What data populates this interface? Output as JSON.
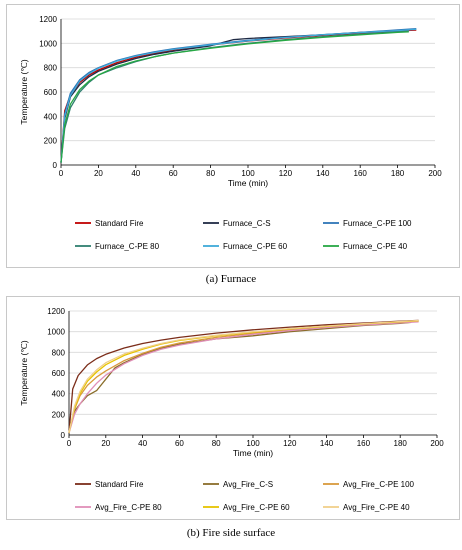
{
  "captions": [
    "(a)  Furnace",
    "(b) Fire side surface"
  ],
  "chart_data": [
    {
      "type": "line",
      "xlabel": "Time (min)",
      "ylabel": "Temperature (℃)",
      "xlim": [
        0,
        200
      ],
      "ylim": [
        0,
        1200
      ],
      "xticks": [
        0,
        20,
        40,
        60,
        80,
        100,
        120,
        140,
        160,
        180,
        200
      ],
      "yticks": [
        0,
        200,
        400,
        600,
        800,
        1000,
        1200
      ],
      "grid": "horizontal",
      "legend_position": "bottom",
      "series": [
        {
          "name": "Standard Fire",
          "color": "#c00000",
          "x": [
            0,
            2,
            5,
            10,
            15,
            20,
            30,
            40,
            50,
            60,
            80,
            100,
            120,
            140,
            160,
            180,
            190
          ],
          "y": [
            20,
            445,
            576,
            678,
            739,
            781,
            842,
            885,
            918,
            945,
            986,
            1018,
            1044,
            1066,
            1084,
            1101,
            1109
          ]
        },
        {
          "name": "Furnace_C-S",
          "color": "#1f2a44",
          "x": [
            0,
            2,
            5,
            10,
            15,
            20,
            30,
            40,
            50,
            60,
            80,
            92,
            100,
            120,
            140,
            160,
            180,
            186
          ],
          "y": [
            20,
            380,
            560,
            660,
            725,
            770,
            830,
            875,
            910,
            935,
            980,
            1030,
            1040,
            1055,
            1070,
            1090,
            1105,
            1110
          ]
        },
        {
          "name": "Furnace_C-PE 100",
          "color": "#2e75b6",
          "x": [
            0,
            2,
            5,
            10,
            15,
            20,
            30,
            40,
            50,
            60,
            80,
            100,
            120,
            140,
            160,
            180,
            190
          ],
          "y": [
            20,
            420,
            590,
            700,
            760,
            800,
            860,
            900,
            930,
            955,
            992,
            1025,
            1050,
            1072,
            1090,
            1110,
            1120
          ]
        },
        {
          "name": "Furnace_C-PE 80",
          "color": "#2f7f6f",
          "x": [
            0,
            2,
            5,
            10,
            15,
            20,
            30,
            40,
            50,
            60,
            80,
            100,
            120,
            140,
            160,
            180,
            186
          ],
          "y": [
            20,
            300,
            470,
            600,
            680,
            740,
            800,
            850,
            890,
            920,
            965,
            1000,
            1030,
            1055,
            1075,
            1095,
            1100
          ]
        },
        {
          "name": "Furnace_C-PE 60",
          "color": "#3fa9d8",
          "x": [
            0,
            2,
            5,
            10,
            15,
            20,
            30,
            40,
            50,
            60,
            80,
            100,
            120,
            140,
            160,
            180,
            190
          ],
          "y": [
            20,
            400,
            570,
            690,
            750,
            795,
            855,
            895,
            925,
            950,
            988,
            1020,
            1048,
            1070,
            1088,
            1105,
            1115
          ]
        },
        {
          "name": "Furnace_C-PE 40",
          "color": "#27a844",
          "x": [
            0,
            2,
            5,
            10,
            15,
            20,
            30,
            40,
            50,
            60,
            80,
            100,
            120,
            140,
            160,
            180,
            186
          ],
          "y": [
            20,
            330,
            500,
            620,
            690,
            740,
            810,
            855,
            890,
            920,
            960,
            995,
            1025,
            1050,
            1070,
            1090,
            1095
          ]
        }
      ]
    },
    {
      "type": "line",
      "xlabel": "Time (min)",
      "ylabel": "Temperature (℃)",
      "xlim": [
        0,
        200
      ],
      "ylim": [
        0,
        1200
      ],
      "xticks": [
        0,
        20,
        40,
        60,
        80,
        100,
        120,
        140,
        160,
        180,
        200
      ],
      "yticks": [
        0,
        200,
        400,
        600,
        800,
        1000,
        1200
      ],
      "grid": "horizontal",
      "legend_position": "bottom",
      "series": [
        {
          "name": "Standard Fire",
          "color": "#7b2d1a",
          "x": [
            0,
            2,
            5,
            10,
            15,
            20,
            30,
            40,
            50,
            60,
            80,
            100,
            120,
            140,
            160,
            180,
            190
          ],
          "y": [
            20,
            445,
            576,
            678,
            739,
            781,
            842,
            885,
            918,
            945,
            986,
            1018,
            1044,
            1066,
            1084,
            1101,
            1109
          ]
        },
        {
          "name": "Avg_Fire_C-S",
          "color": "#8a6d2a",
          "x": [
            0,
            3,
            6,
            10,
            15,
            20,
            25,
            30,
            40,
            50,
            60,
            80,
            100,
            120,
            140,
            160,
            180,
            186
          ],
          "y": [
            20,
            230,
            300,
            380,
            430,
            540,
            650,
            700,
            780,
            840,
            880,
            930,
            960,
            1000,
            1030,
            1060,
            1080,
            1090
          ]
        },
        {
          "name": "Avg_Fire_C-PE 100",
          "color": "#d99a3c",
          "x": [
            0,
            3,
            6,
            10,
            15,
            20,
            30,
            40,
            50,
            60,
            80,
            100,
            120,
            140,
            160,
            180,
            190
          ],
          "y": [
            20,
            250,
            380,
            480,
            560,
            620,
            720,
            790,
            850,
            890,
            945,
            985,
            1020,
            1045,
            1070,
            1090,
            1100
          ]
        },
        {
          "name": "Avg_Fire_C-PE 80",
          "color": "#e08fb8",
          "x": [
            0,
            3,
            6,
            10,
            15,
            20,
            30,
            40,
            50,
            60,
            80,
            100,
            120,
            140,
            160,
            180,
            190
          ],
          "y": [
            20,
            200,
            300,
            400,
            500,
            580,
            690,
            770,
            830,
            870,
            930,
            975,
            1010,
            1040,
            1065,
            1085,
            1095
          ]
        },
        {
          "name": "Avg_Fire_C-PE 60",
          "color": "#e6c300",
          "x": [
            0,
            3,
            6,
            10,
            15,
            20,
            30,
            40,
            50,
            60,
            80,
            100,
            120,
            140,
            160,
            180,
            190
          ],
          "y": [
            20,
            260,
            400,
            520,
            610,
            680,
            770,
            830,
            880,
            915,
            960,
            995,
            1028,
            1052,
            1075,
            1095,
            1105
          ]
        },
        {
          "name": "Avg_Fire_C-PE 40",
          "color": "#f0cf8a",
          "x": [
            0,
            3,
            6,
            10,
            15,
            20,
            30,
            40,
            50,
            60,
            80,
            100,
            120,
            140,
            160,
            180,
            190
          ],
          "y": [
            20,
            280,
            420,
            540,
            630,
            700,
            785,
            840,
            885,
            920,
            965,
            1000,
            1030,
            1055,
            1078,
            1098,
            1108
          ]
        }
      ]
    }
  ]
}
